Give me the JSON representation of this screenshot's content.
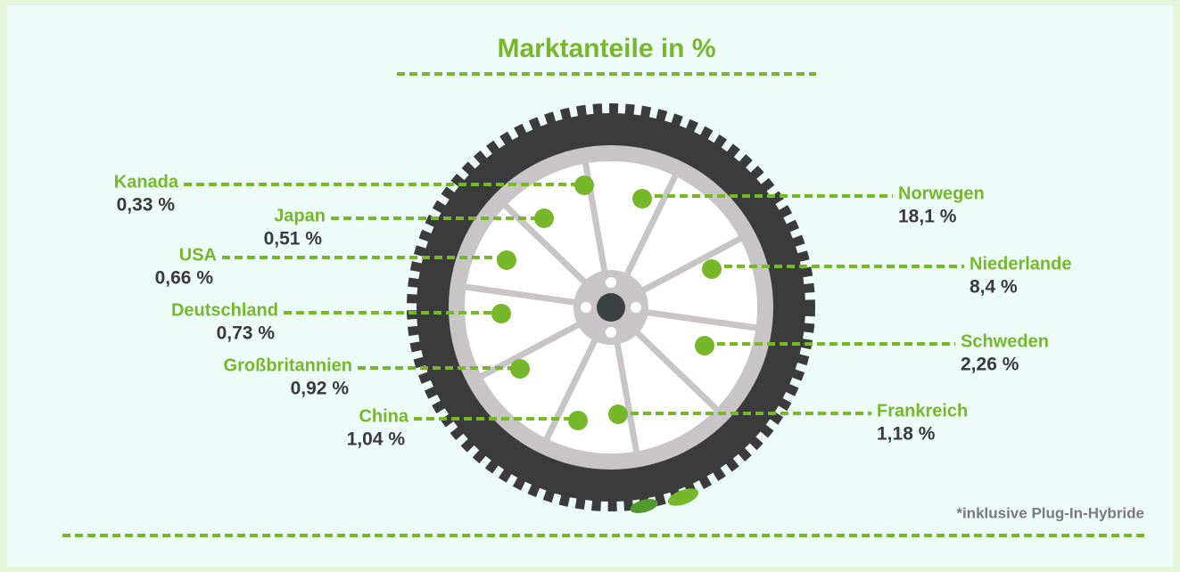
{
  "title": "Marktanteile in %",
  "items": [
    {
      "country": "Kanada",
      "share": "0,33 %"
    },
    {
      "country": "Japan",
      "share": "0,51 %"
    },
    {
      "country": "USA",
      "share": "0,66 %"
    },
    {
      "country": "Deutschland",
      "share": "0,73 %"
    },
    {
      "country": "Großbritannien",
      "share": "0,92 %"
    },
    {
      "country": "China",
      "share": "1,04 %"
    },
    {
      "country": "Norwegen",
      "share": "18,1 %"
    },
    {
      "country": "Niederlande",
      "share": "8,4 %"
    },
    {
      "country": "Schweden",
      "share": "2,26 %"
    },
    {
      "country": "Frankreich",
      "share": "1,18 %"
    }
  ],
  "footnote": "*inklusive Plug-In-Hybride"
}
